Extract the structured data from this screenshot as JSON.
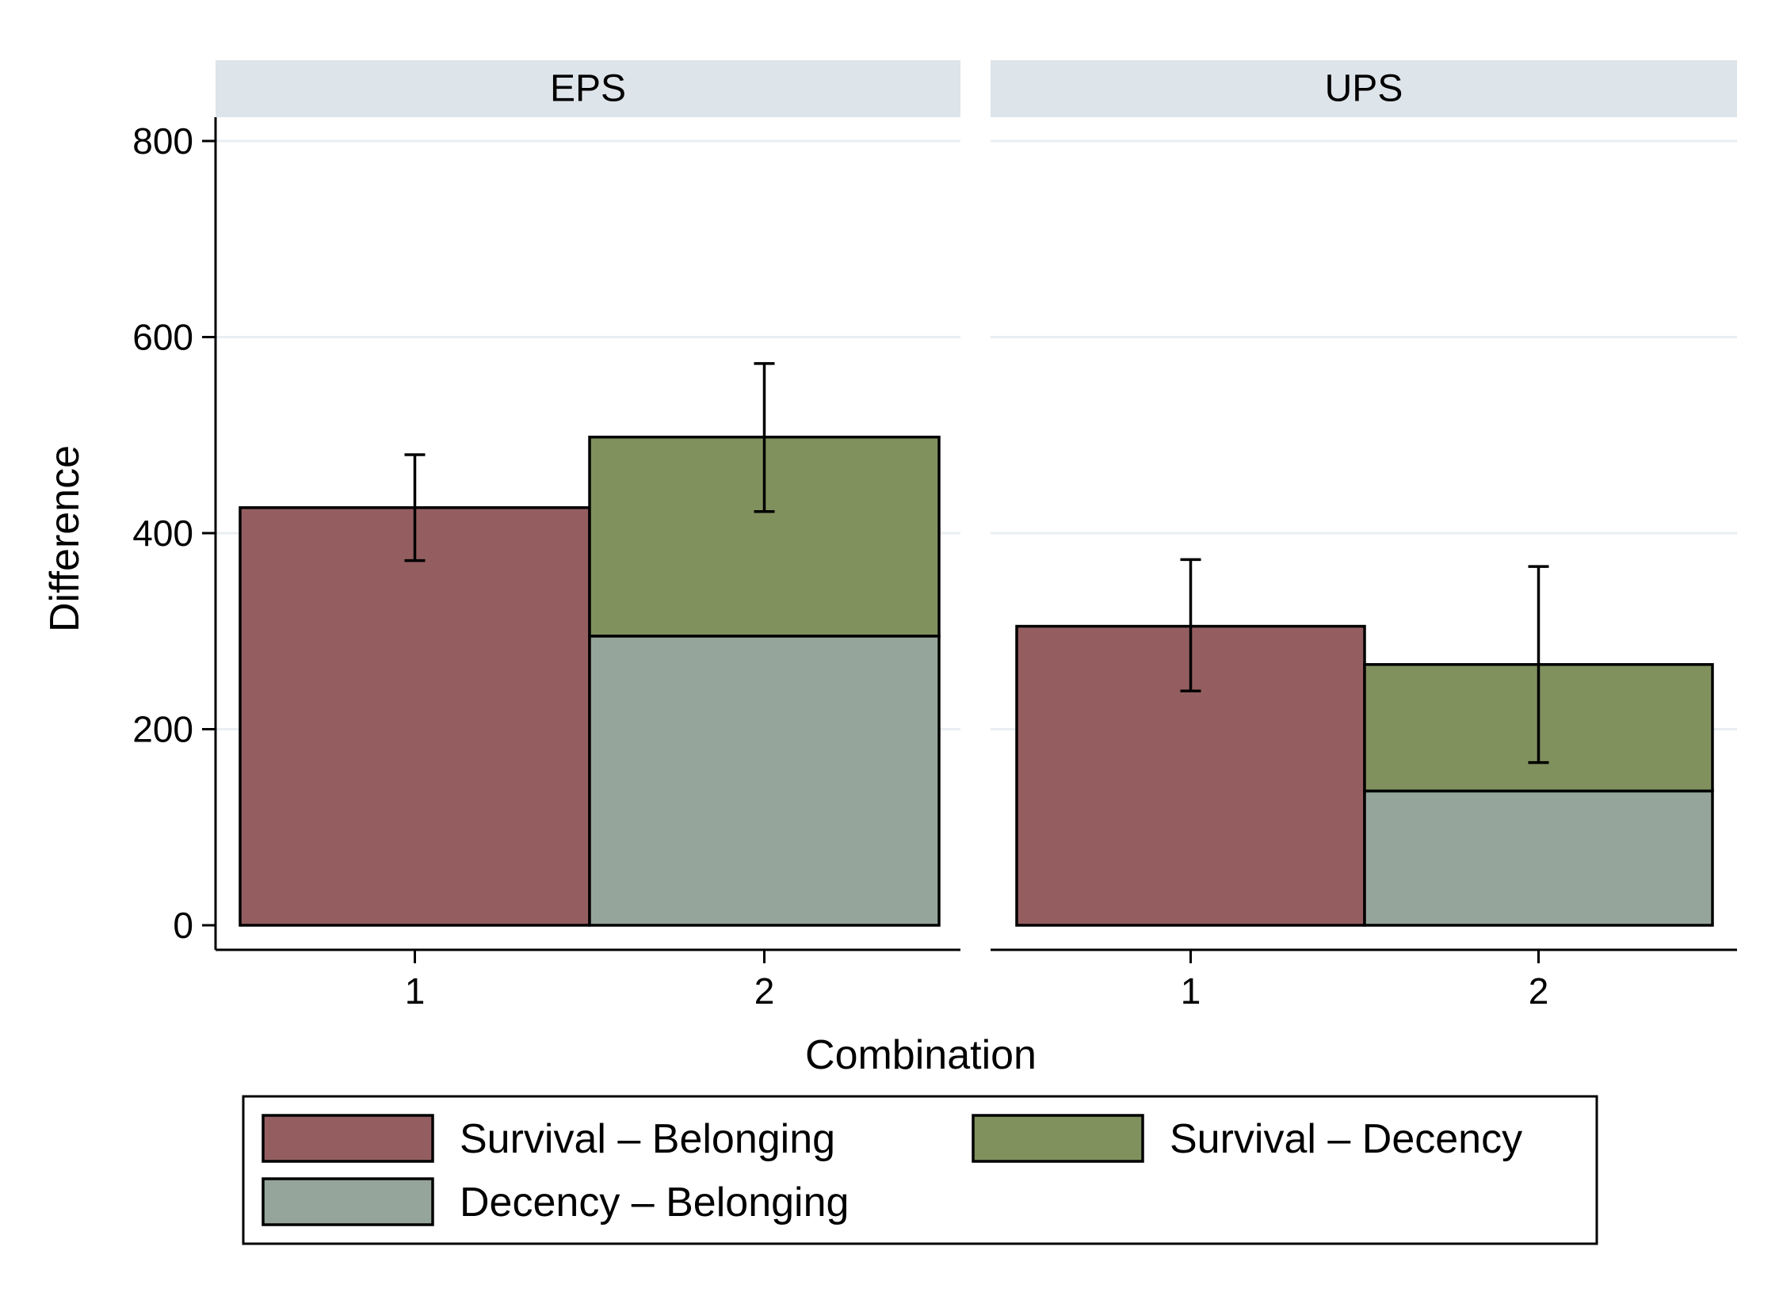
{
  "chart_data": {
    "type": "bar",
    "facets": [
      "EPS",
      "UPS"
    ],
    "categories": [
      "1",
      "2"
    ],
    "xlabel": "Combination",
    "ylabel": "Difference",
    "ylim": [
      0,
      800
    ],
    "yticks": [
      0,
      200,
      400,
      600,
      800
    ],
    "grid": true,
    "legend_position": "bottom",
    "series": [
      {
        "name": "Survival – Belonging",
        "color": "#945e61"
      },
      {
        "name": "Survival – Decency",
        "color": "#80915e"
      },
      {
        "name": "Decency – Belonging",
        "color": "#95a59b"
      }
    ],
    "panels": [
      {
        "facet": "EPS",
        "bars": [
          {
            "category": "1",
            "segments": [
              {
                "series": 0,
                "value": 426
              }
            ],
            "total": 426,
            "ci": [
              372,
              480
            ]
          },
          {
            "category": "2",
            "segments": [
              {
                "series": 2,
                "value": 295
              },
              {
                "series": 1,
                "value": 203
              }
            ],
            "total": 498,
            "ci": [
              422,
              573
            ]
          }
        ]
      },
      {
        "facet": "UPS",
        "bars": [
          {
            "category": "1",
            "segments": [
              {
                "series": 0,
                "value": 305
              }
            ],
            "total": 305,
            "ci": [
              239,
              373
            ]
          },
          {
            "category": "2",
            "segments": [
              {
                "series": 2,
                "value": 137
              },
              {
                "series": 1,
                "value": 129
              }
            ],
            "total": 266,
            "ci": [
              166,
              366
            ]
          }
        ]
      }
    ]
  }
}
